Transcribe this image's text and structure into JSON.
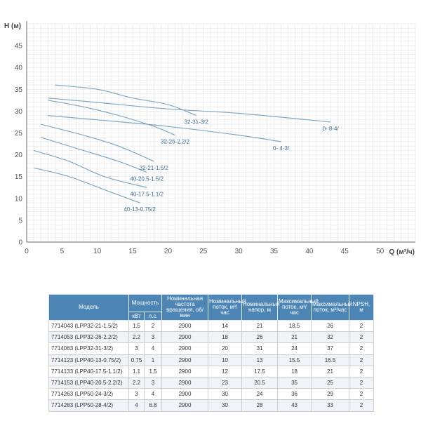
{
  "chart_data": {
    "type": "line",
    "xlabel": "Q (м³/ч)",
    "ylabel": "H (м)",
    "xlim": [
      0,
      55
    ],
    "ylim": [
      0,
      50
    ],
    "xticks": [
      0,
      5,
      10,
      15,
      20,
      25,
      30,
      35,
      40,
      45,
      50
    ],
    "yticks": [
      0,
      5,
      10,
      15,
      20,
      25,
      30,
      35,
      40,
      45
    ],
    "grid": true,
    "series": [
      {
        "name": "32-31-3/2",
        "points": [
          [
            4,
            36
          ],
          [
            10,
            35
          ],
          [
            15,
            33
          ],
          [
            20,
            31.5
          ],
          [
            24,
            29
          ]
        ]
      },
      {
        "name": "32-26-2.2/2",
        "points": [
          [
            3,
            32.5
          ],
          [
            8,
            31
          ],
          [
            13,
            29
          ],
          [
            18,
            26.5
          ],
          [
            21,
            24.5
          ]
        ]
      },
      {
        "name": "32-21-1.5/2",
        "points": [
          [
            2,
            27
          ],
          [
            8,
            24.5
          ],
          [
            13,
            22
          ],
          [
            18,
            18.5
          ]
        ]
      },
      {
        "name": "40-20.5-1.5/2",
        "points": [
          [
            2,
            24
          ],
          [
            7,
            21.5
          ],
          [
            13,
            18.5
          ],
          [
            17,
            16
          ]
        ]
      },
      {
        "name": "40-17.5-1.1/2",
        "points": [
          [
            1,
            21
          ],
          [
            6,
            18.5
          ],
          [
            11,
            15
          ],
          [
            17,
            12.5
          ]
        ]
      },
      {
        "name": "40-13-0.75/2",
        "points": [
          [
            1,
            17
          ],
          [
            6,
            15
          ],
          [
            11,
            12
          ],
          [
            16,
            9
          ]
        ]
      },
      {
        "name": "0-  8-4/",
        "points": [
          [
            3,
            33
          ],
          [
            10,
            32
          ],
          [
            20,
            30.5
          ],
          [
            30,
            29.5
          ],
          [
            43,
            27.5
          ]
        ]
      },
      {
        "name": "0-  4-3/",
        "points": [
          [
            3,
            29
          ],
          [
            10,
            28
          ],
          [
            20,
            26.5
          ],
          [
            30,
            24.5
          ],
          [
            36,
            23
          ]
        ]
      }
    ]
  },
  "table": {
    "headers": {
      "model": "Модель",
      "power": "Мощность",
      "kw": "кВт",
      "hp": "л.с.",
      "speed": "Номинальная частота вращения, об/мин",
      "flow": "Номинальный поток, м³/час",
      "head": "Номинальный напор, м",
      "max_flow": "Максимальный поток, м³/час",
      "max_head": "Максимальный поток, м³/час",
      "npsh": "NPSH, м"
    },
    "rows": [
      {
        "model": "7714043 (LPP32-21-1.5/2)",
        "kw": "1.5",
        "hp": "2",
        "speed": "2900",
        "flow": "14",
        "head": "21",
        "max_flow": "18.5",
        "max_head": "26",
        "npsh": "2"
      },
      {
        "model": "7714053 (LPP32-26-2.2/2)",
        "kw": "2.2",
        "hp": "3",
        "speed": "2900",
        "flow": "18",
        "head": "26",
        "max_flow": "21",
        "max_head": "32",
        "npsh": "2"
      },
      {
        "model": "7714063 (LPP32-31-3/2)",
        "kw": "3",
        "hp": "4",
        "speed": "2900",
        "flow": "20",
        "head": "31",
        "max_flow": "24",
        "max_head": "37",
        "npsh": "2"
      },
      {
        "model": "7714123 (LPP40-13-0.75/2)",
        "kw": "0.75",
        "hp": "1",
        "speed": "2900",
        "flow": "10",
        "head": "13",
        "max_flow": "15.5",
        "max_head": "16.5",
        "npsh": "2"
      },
      {
        "model": "7714133 (LPP40-17.5-1.1/2)",
        "kw": "1.1",
        "hp": "1.5",
        "speed": "2900",
        "flow": "12",
        "head": "17.5",
        "max_flow": "18",
        "max_head": "21",
        "npsh": "2"
      },
      {
        "model": "7714153 (LPP40-20.5-2.2/2)",
        "kw": "2.2",
        "hp": "3",
        "speed": "2900",
        "flow": "23",
        "head": "20.5",
        "max_flow": "35",
        "max_head": "25",
        "npsh": "2"
      },
      {
        "model": "7714263 (LPP50-24-3/2)",
        "kw": "3",
        "hp": "4",
        "speed": "2900",
        "flow": "30",
        "head": "24",
        "max_flow": "36",
        "max_head": "29",
        "npsh": "2"
      },
      {
        "model": "7714283 (LPP50-28-4/2)",
        "kw": "4",
        "hp": "6.8",
        "speed": "2900",
        "flow": "30",
        "head": "28",
        "max_flow": "43",
        "max_head": "33",
        "npsh": "2"
      }
    ]
  },
  "colors": {
    "curve": "#7ea8c4",
    "label": "#3f6f93",
    "grid": "#e3e3e3",
    "axis": "#6a6a6a",
    "header_bg": "#4d86b4"
  }
}
